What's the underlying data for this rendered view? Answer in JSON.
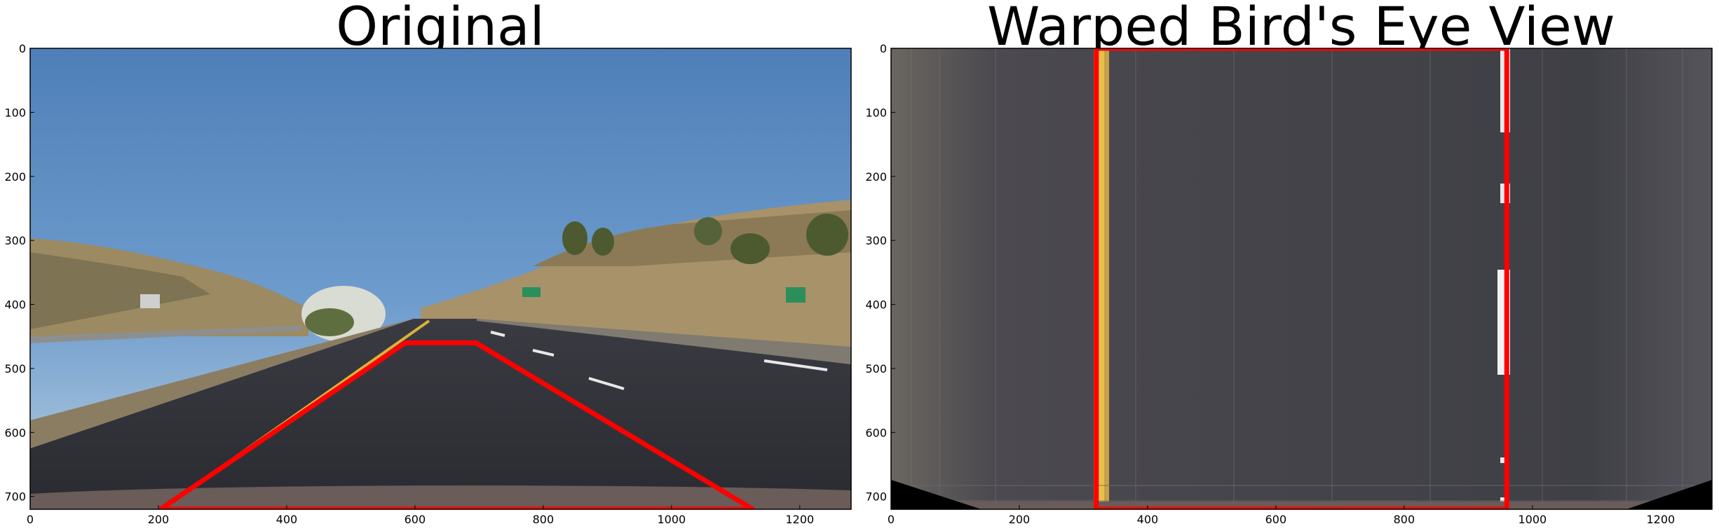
{
  "panels": [
    {
      "title": "Original",
      "x_ticks": [
        "0",
        "200",
        "400",
        "600",
        "800",
        "1000",
        "1200"
      ],
      "y_ticks": [
        "0",
        "100",
        "200",
        "300",
        "400",
        "500",
        "600",
        "700"
      ],
      "overlay_color": "#ff0000"
    },
    {
      "title": "Warped Bird's Eye View",
      "x_ticks": [
        "0",
        "200",
        "400",
        "600",
        "800",
        "1000",
        "1200"
      ],
      "y_ticks": [
        "0",
        "100",
        "200",
        "300",
        "400",
        "500",
        "600",
        "700"
      ],
      "overlay_color": "#ff0000"
    }
  ],
  "image_extent": {
    "width": 1280,
    "height": 720
  }
}
